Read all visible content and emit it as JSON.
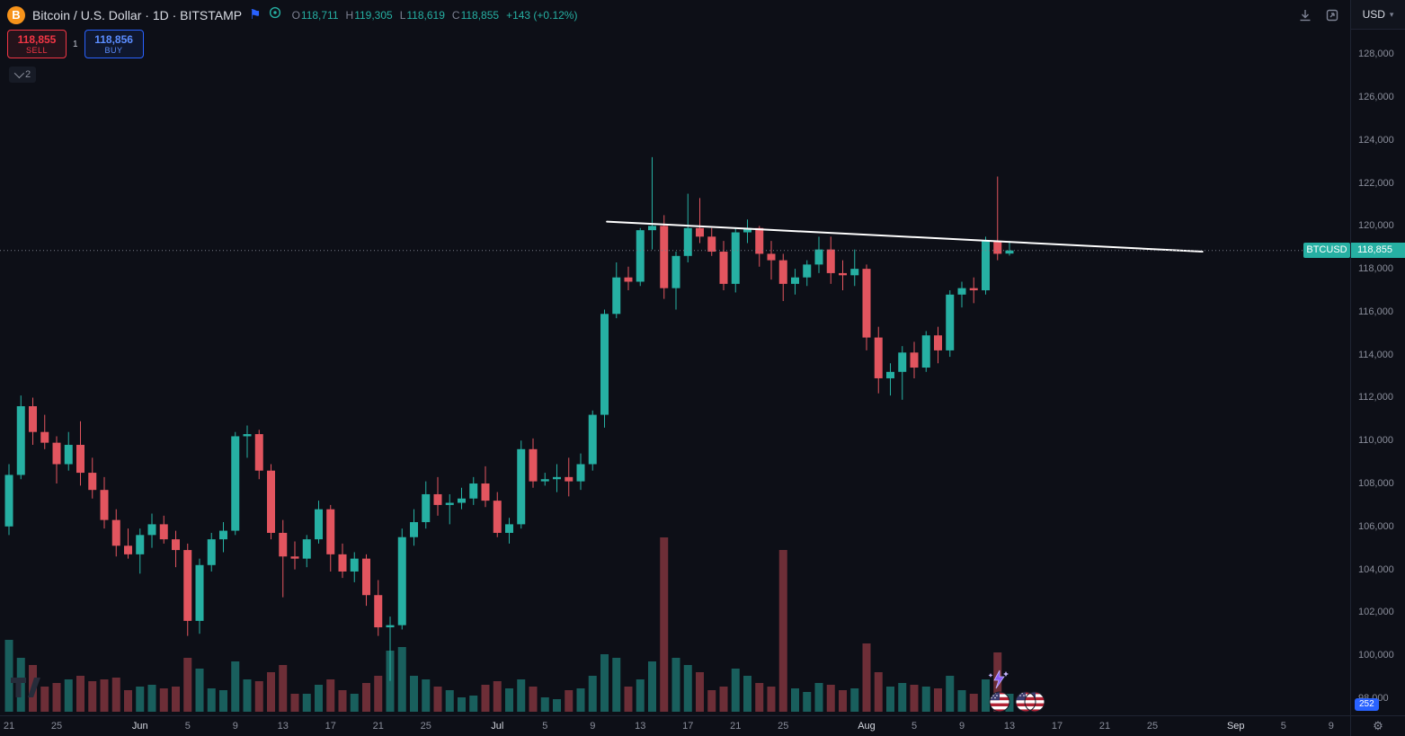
{
  "header": {
    "title": "Bitcoin / U.S. Dollar · 1D · BITSTAMP",
    "ohlc": {
      "open_label": "O",
      "open": "118,711",
      "high_label": "H",
      "high": "119,305",
      "low_label": "L",
      "low": "118,619",
      "close_label": "C",
      "close": "118,855",
      "change": "+143 (+0.12%)"
    },
    "currency": "USD"
  },
  "order_panel": {
    "sell_price": "118,855",
    "sell_label": "SELL",
    "spread": "1",
    "buy_price": "118,856",
    "buy_label": "BUY"
  },
  "object_tree_badge": {
    "count": "2"
  },
  "price_scale": {
    "tick_labels": [
      "128,000",
      "126,000",
      "124,000",
      "122,000",
      "120,000",
      "118,000",
      "116,000",
      "114,000",
      "112,000",
      "110,000",
      "108,000",
      "106,000",
      "104,000",
      "102,000",
      "100,000",
      "98,000"
    ],
    "symbol_tag": "BTCUSD",
    "last_price_tag": "118,855",
    "countdown": "252"
  },
  "time_scale": {
    "ticks": [
      {
        "index": 0,
        "label": "21",
        "month": false
      },
      {
        "index": 4,
        "label": "25",
        "month": false
      },
      {
        "index": 11,
        "label": "Jun",
        "month": true
      },
      {
        "index": 15,
        "label": "5",
        "month": false
      },
      {
        "index": 19,
        "label": "9",
        "month": false
      },
      {
        "index": 23,
        "label": "13",
        "month": false
      },
      {
        "index": 27,
        "label": "17",
        "month": false
      },
      {
        "index": 31,
        "label": "21",
        "month": false
      },
      {
        "index": 35,
        "label": "25",
        "month": false
      },
      {
        "index": 41,
        "label": "Jul",
        "month": true
      },
      {
        "index": 45,
        "label": "5",
        "month": false
      },
      {
        "index": 49,
        "label": "9",
        "month": false
      },
      {
        "index": 53,
        "label": "13",
        "month": false
      },
      {
        "index": 57,
        "label": "17",
        "month": false
      },
      {
        "index": 61,
        "label": "21",
        "month": false
      },
      {
        "index": 65,
        "label": "25",
        "month": false
      },
      {
        "index": 72,
        "label": "Aug",
        "month": true
      },
      {
        "index": 76,
        "label": "5",
        "month": false
      },
      {
        "index": 80,
        "label": "9",
        "month": false
      },
      {
        "index": 84,
        "label": "13",
        "month": false
      },
      {
        "index": 88,
        "label": "17",
        "month": false
      },
      {
        "index": 92,
        "label": "21",
        "month": false
      },
      {
        "index": 96,
        "label": "25",
        "month": false
      },
      {
        "index": 103,
        "label": "Sep",
        "month": true
      },
      {
        "index": 107,
        "label": "5",
        "month": false
      },
      {
        "index": 111,
        "label": "9",
        "month": false
      }
    ]
  },
  "colors": {
    "up": "#26b0a3",
    "down": "#e2555f",
    "up_volume": "rgba(38,176,163,0.5)",
    "down_volume": "rgba(226,85,95,0.45)",
    "accent_blue": "#2962ff",
    "sell_red": "#f23645",
    "bitcoin_orange": "#f7931a",
    "trendline": "#ffffff"
  },
  "chart_data": {
    "type": "candlestick",
    "symbol": "BTCUSD",
    "exchange": "BITSTAMP",
    "interval": "1D",
    "last_price": 118855,
    "price_axis": {
      "min": 97200,
      "max": 129100,
      "tick_step": 2000,
      "tick_low": 98000,
      "tick_high": 128000,
      "grid": false
    },
    "trendline": {
      "start_index": 50.2,
      "start_price": 120200,
      "end_index": 100.2,
      "end_price": 118800
    },
    "candles": [
      [
        "May 21",
        106000,
        108900,
        105600,
        108400,
        40
      ],
      [
        "May 22",
        108400,
        112100,
        108200,
        111600,
        30
      ],
      [
        "May 23",
        111600,
        112000,
        109800,
        110400,
        26
      ],
      [
        "May 24",
        110400,
        111200,
        109600,
        109900,
        14
      ],
      [
        "May 25",
        109900,
        110200,
        108000,
        108900,
        16
      ],
      [
        "May 26",
        108900,
        110400,
        108600,
        109800,
        18
      ],
      [
        "May 27",
        109800,
        110900,
        107900,
        108500,
        20
      ],
      [
        "May 28",
        108500,
        109200,
        107300,
        107700,
        17
      ],
      [
        "May 29",
        107700,
        108300,
        105900,
        106300,
        18
      ],
      [
        "May 30",
        106300,
        106800,
        104600,
        105100,
        19
      ],
      [
        "May 31",
        105100,
        105900,
        104500,
        104700,
        12
      ],
      [
        "Jun 1",
        104700,
        105900,
        103800,
        105600,
        14
      ],
      [
        "Jun 2",
        105600,
        106600,
        105000,
        106100,
        15
      ],
      [
        "Jun 3",
        106100,
        106500,
        105200,
        105400,
        13
      ],
      [
        "Jun 4",
        105400,
        105800,
        104100,
        104900,
        14
      ],
      [
        "Jun 5",
        104900,
        105200,
        100900,
        101600,
        30
      ],
      [
        "Jun 6",
        101600,
        104500,
        101000,
        104200,
        24
      ],
      [
        "Jun 7",
        104200,
        105700,
        103900,
        105400,
        13
      ],
      [
        "Jun 8",
        105400,
        106200,
        104800,
        105800,
        12
      ],
      [
        "Jun 9",
        105800,
        110400,
        105600,
        110200,
        28
      ],
      [
        "Jun 10",
        110200,
        110700,
        109200,
        110300,
        18
      ],
      [
        "Jun 11",
        110300,
        110500,
        108200,
        108600,
        17
      ],
      [
        "Jun 12",
        108600,
        108900,
        105400,
        105700,
        22
      ],
      [
        "Jun 13",
        105700,
        106300,
        102700,
        104600,
        26
      ],
      [
        "Jun 14",
        104600,
        105300,
        104000,
        104500,
        10
      ],
      [
        "Jun 15",
        104500,
        105600,
        104100,
        105400,
        10
      ],
      [
        "Jun 16",
        105400,
        107200,
        105200,
        106800,
        15
      ],
      [
        "Jun 17",
        106800,
        107000,
        103900,
        104700,
        18
      ],
      [
        "Jun 18",
        104700,
        105200,
        103600,
        103900,
        12
      ],
      [
        "Jun 19",
        103900,
        104800,
        103400,
        104500,
        10
      ],
      [
        "Jun 20",
        104500,
        104700,
        102300,
        102800,
        16
      ],
      [
        "Jun 21",
        102800,
        103500,
        100900,
        101300,
        20
      ],
      [
        "Jun 22",
        101300,
        101800,
        98800,
        101400,
        34
      ],
      [
        "Jun 23",
        101400,
        105900,
        101200,
        105500,
        36
      ],
      [
        "Jun 24",
        105500,
        106800,
        105100,
        106200,
        20
      ],
      [
        "Jun 25",
        106200,
        108100,
        105900,
        107500,
        18
      ],
      [
        "Jun 26",
        107500,
        108300,
        106500,
        107000,
        14
      ],
      [
        "Jun 27",
        107000,
        107500,
        106100,
        107100,
        12
      ],
      [
        "Jun 28",
        107100,
        107800,
        106800,
        107300,
        8
      ],
      [
        "Jun 29",
        107300,
        108300,
        107000,
        108000,
        9
      ],
      [
        "Jun 30",
        108000,
        108800,
        106900,
        107200,
        15
      ],
      [
        "Jul 1",
        107200,
        107600,
        105500,
        105700,
        17
      ],
      [
        "Jul 2",
        105700,
        106400,
        105200,
        106100,
        13
      ],
      [
        "Jul 3",
        106100,
        110000,
        105900,
        109600,
        18
      ],
      [
        "Jul 4",
        109600,
        110100,
        107800,
        108100,
        14
      ],
      [
        "Jul 5",
        108100,
        108500,
        107900,
        108200,
        8
      ],
      [
        "Jul 6",
        108200,
        108900,
        107600,
        108300,
        7
      ],
      [
        "Jul 7",
        108300,
        109200,
        107400,
        108100,
        12
      ],
      [
        "Jul 8",
        108100,
        109400,
        107700,
        108900,
        13
      ],
      [
        "Jul 9",
        108900,
        111400,
        108600,
        111200,
        20
      ],
      [
        "Jul 10",
        111200,
        116100,
        110600,
        115900,
        32
      ],
      [
        "Jul 11",
        115900,
        118300,
        115700,
        117600,
        30
      ],
      [
        "Jul 12",
        117600,
        118100,
        117000,
        117400,
        14
      ],
      [
        "Jul 13",
        117400,
        119900,
        117200,
        119800,
        18
      ],
      [
        "Jul 14",
        119800,
        123200,
        118900,
        120000,
        28
      ],
      [
        "Jul 15",
        120000,
        120500,
        116600,
        117100,
        97
      ],
      [
        "Jul 16",
        117100,
        118800,
        116100,
        118600,
        30
      ],
      [
        "Jul 17",
        118600,
        121500,
        118300,
        119900,
        26
      ],
      [
        "Jul 18",
        119900,
        121300,
        119200,
        119500,
        22
      ],
      [
        "Jul 19",
        119500,
        119900,
        118600,
        118800,
        12
      ],
      [
        "Jul 20",
        118800,
        119300,
        117000,
        117300,
        14
      ],
      [
        "Jul 21",
        117300,
        119900,
        116900,
        119700,
        24
      ],
      [
        "Jul 22",
        119700,
        120300,
        119200,
        119900,
        20
      ],
      [
        "Jul 23",
        119900,
        120000,
        118100,
        118700,
        16
      ],
      [
        "Jul 24",
        118700,
        119300,
        117500,
        118400,
        14
      ],
      [
        "Jul 25",
        118400,
        118700,
        116500,
        117300,
        90
      ],
      [
        "Jul 26",
        117300,
        118000,
        116800,
        117600,
        13
      ],
      [
        "Jul 27",
        117600,
        118400,
        117200,
        118200,
        11
      ],
      [
        "Jul 28",
        118200,
        119500,
        117800,
        118900,
        16
      ],
      [
        "Jul 29",
        118900,
        119500,
        117300,
        117800,
        15
      ],
      [
        "Jul 30",
        117800,
        118400,
        117000,
        117700,
        12
      ],
      [
        "Jul 31",
        117700,
        118900,
        117200,
        118000,
        13
      ],
      [
        "Aug 1",
        118000,
        118200,
        114200,
        114800,
        38
      ],
      [
        "Aug 2",
        114800,
        115300,
        112200,
        112900,
        22
      ],
      [
        "Aug 3",
        112900,
        113600,
        112100,
        113200,
        14
      ],
      [
        "Aug 4",
        113200,
        114400,
        111900,
        114100,
        16
      ],
      [
        "Aug 5",
        114100,
        114600,
        112900,
        113400,
        15
      ],
      [
        "Aug 6",
        113400,
        115100,
        113200,
        114900,
        14
      ],
      [
        "Aug 7",
        114900,
        115300,
        113600,
        114200,
        13
      ],
      [
        "Aug 8",
        114200,
        117000,
        113900,
        116800,
        20
      ],
      [
        "Aug 9",
        116800,
        117400,
        116200,
        117100,
        12
      ],
      [
        "Aug 10",
        117100,
        117600,
        116400,
        117000,
        10
      ],
      [
        "Aug 11",
        117000,
        119500,
        116800,
        119300,
        18
      ],
      [
        "Aug 12",
        119300,
        122300,
        118400,
        118700,
        33
      ],
      [
        "Aug 13",
        118711,
        119305,
        118619,
        118855,
        10
      ]
    ]
  }
}
